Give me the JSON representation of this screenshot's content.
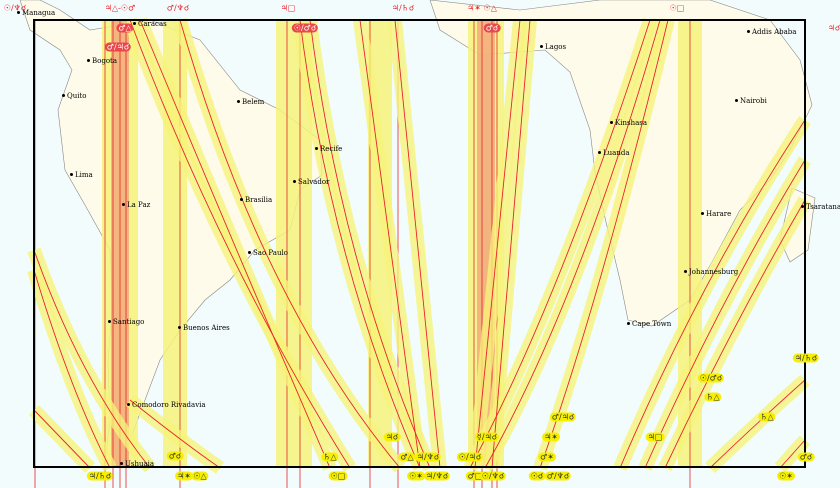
{
  "map": {
    "colors": {
      "ocean": "#f2fcfd",
      "land": "#fffbea",
      "band": "#f6f27a",
      "line": "#e8242a",
      "frame": "#000000"
    },
    "cities": [
      "Managua",
      "Caracas",
      "Bogota",
      "Quito",
      "Lima",
      "La Paz",
      "Belem",
      "Recife",
      "Salvador",
      "Brasilia",
      "Sao Paulo",
      "Santiago",
      "Buenos Aires",
      "Comodoro Rivadavia",
      "Ushuaia",
      "Lagos",
      "Kinshasa",
      "Luanda",
      "Addis Ababa",
      "Nairobi",
      "Harare",
      "Johannesburg",
      "Cape Town",
      "Tsaratanana"
    ],
    "top_labels": [
      "☉/♆☌",
      "♃△-☉♂",
      "♂/♆☌",
      "♃□",
      "♃/♄☌",
      "♃✶ ☉△",
      "☉□"
    ],
    "inner_labels": [
      "♂△",
      "♂/♃☌",
      "☉/♂☌",
      "♂☌"
    ],
    "yellow_labels": [
      "♂☌",
      "♄△",
      "♃☌",
      "♂△",
      "♃/♆☌",
      "☿/♃☌",
      "☉/♃☌",
      "♃✶",
      "♂✶",
      "♂/♃☌",
      "♃□",
      "☉/♂☌",
      "♄△",
      "♄△",
      "♃/♄☌",
      "♂☌"
    ],
    "bottom_labels": [
      "♃/♄☌",
      "♃✶",
      "☉△",
      "☉□",
      "☉✶",
      "♃/♆☌",
      "♂□",
      "☉/♆☌",
      "☉☌",
      "♂/♆☌",
      "☉✶"
    ],
    "right_edge_label": "♃☌"
  }
}
